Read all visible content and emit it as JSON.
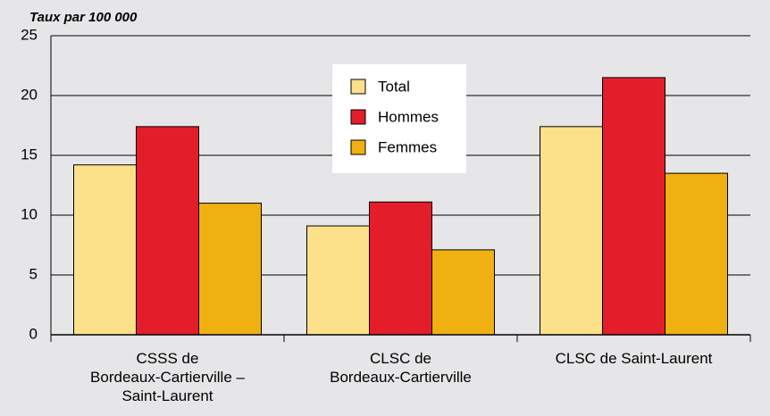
{
  "chart_data": {
    "type": "bar",
    "y_label": "Taux par 100 000",
    "categories": [
      "CSSS de\nBordeaux-Cartierville –\nSaint-Laurent",
      "CLSC de\nBordeaux-Cartierville",
      "CLSC de Saint-Laurent"
    ],
    "series": [
      {
        "name": "Total",
        "color": "#fde08a",
        "values": [
          14.2,
          9.1,
          17.4
        ]
      },
      {
        "name": "Hommes",
        "color": "#e31e2a",
        "values": [
          17.4,
          11.1,
          21.5
        ]
      },
      {
        "name": "Femmes",
        "color": "#eeb111",
        "values": [
          11.0,
          7.1,
          13.5
        ]
      }
    ],
    "ylim": [
      0,
      25
    ],
    "yticks": [
      0,
      5,
      10,
      15,
      20,
      25
    ],
    "grid": true
  }
}
